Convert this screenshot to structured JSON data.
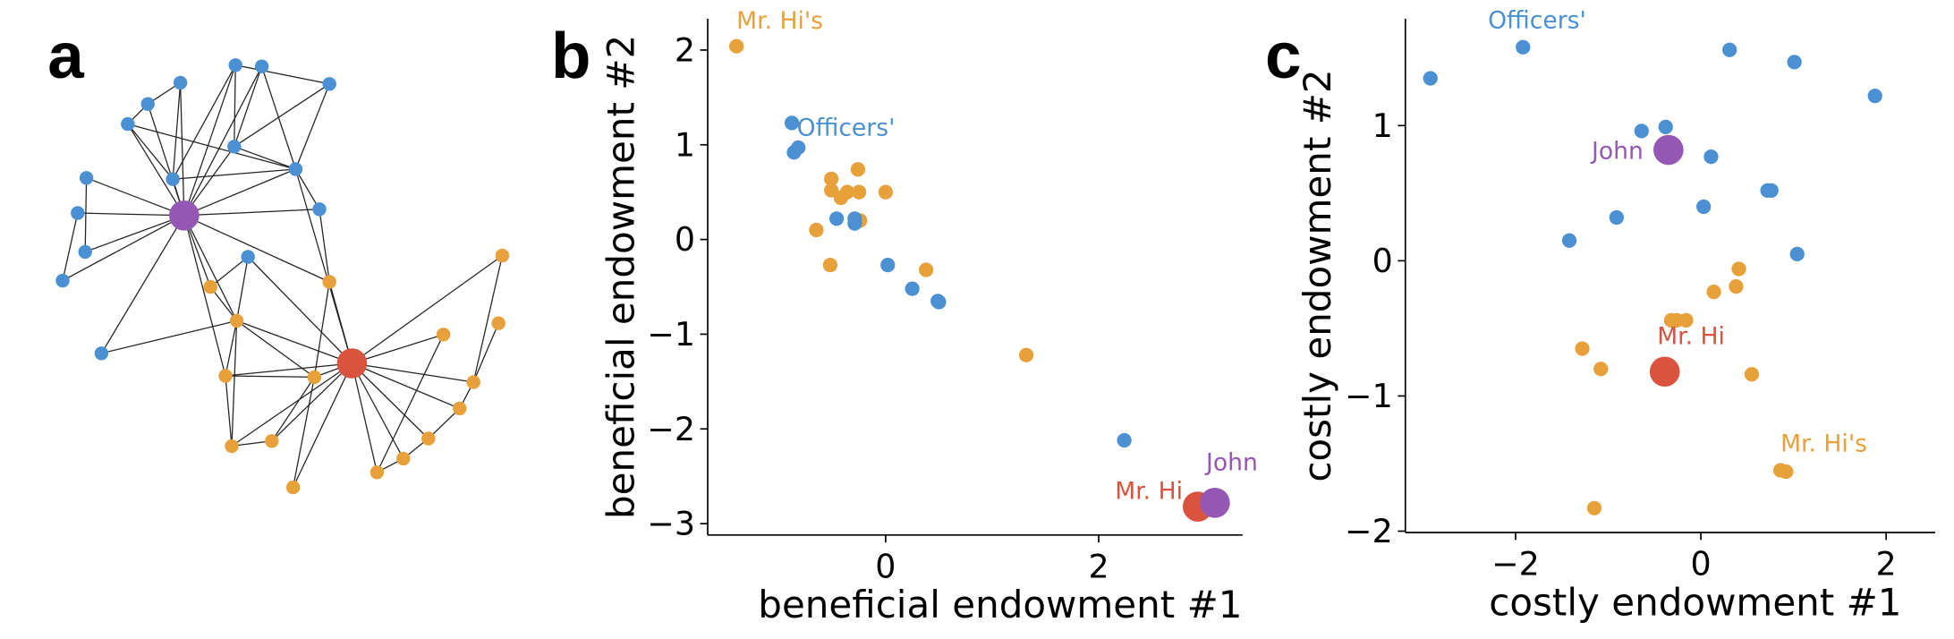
{
  "network": {
    "panel": "a"
  },
  "chart_data": [
    {
      "type": "scatter",
      "panel": "b",
      "xlabel": "beneficial endowment #1",
      "ylabel": "beneficial endowment #2",
      "xlim": [
        -1.67,
        3.35
      ],
      "ylim": [
        -3.12,
        2.33
      ],
      "xticks": [
        0,
        2
      ],
      "yticks": [
        {
          "value": -3,
          "label": "−3"
        },
        {
          "value": -2,
          "label": "−2"
        },
        {
          "value": -1,
          "label": "−1"
        },
        0,
        1,
        2
      ],
      "series": [
        {
          "name": "Mr. Hi's",
          "color": "#e8a03a",
          "x": [
            -1.4,
            -0.51,
            -0.26,
            -0.51,
            -0.36,
            -0.42,
            -0.25,
            0.0,
            -0.65,
            -0.24,
            -0.52,
            0.38,
            1.32
          ],
          "values": [
            2.04,
            0.64,
            0.74,
            0.52,
            0.5,
            0.44,
            0.5,
            0.5,
            0.1,
            0.2,
            -0.27,
            -0.32,
            -1.22
          ]
        },
        {
          "name": "Officers'",
          "color": "#4a90d3",
          "x": [
            -0.88,
            -0.82,
            -0.86,
            -0.46,
            -0.29,
            -0.29,
            0.02,
            0.25,
            0.49,
            0.5,
            2.24
          ],
          "values": [
            1.23,
            0.97,
            0.92,
            0.22,
            0.22,
            0.17,
            -0.27,
            -0.52,
            -0.65,
            -0.66,
            -2.12
          ]
        },
        {
          "name": "Mr. Hi",
          "color": "#d9533e",
          "x": [
            2.93
          ],
          "values": [
            -2.82
          ]
        },
        {
          "name": "John",
          "color": "#9457b3",
          "x": [
            3.09
          ],
          "values": [
            -2.78
          ]
        }
      ]
    },
    {
      "type": "scatter",
      "panel": "c",
      "xlabel": "costly endowment #1",
      "ylabel": "costly endowment #2",
      "xlim": [
        -3.19,
        2.53
      ],
      "ylim": [
        -2.01,
        1.79
      ],
      "xticks": [
        {
          "value": -2,
          "label": "−2"
        },
        0,
        2
      ],
      "yticks": [
        {
          "value": -2,
          "label": "−2"
        },
        {
          "value": -1,
          "label": "−1"
        },
        0,
        1
      ],
      "series": [
        {
          "name": "Officers'",
          "color": "#4a90d3",
          "x": [
            -1.92,
            -2.92,
            0.31,
            1.01,
            1.88,
            -0.64,
            -0.38,
            0.11,
            0.72,
            0.76,
            0.03,
            -0.91,
            -1.42,
            1.04
          ],
          "values": [
            1.58,
            1.35,
            1.56,
            1.47,
            1.22,
            0.96,
            0.99,
            0.77,
            0.52,
            0.52,
            0.4,
            0.32,
            0.15,
            0.05
          ]
        },
        {
          "name": "Mr. Hi's",
          "color": "#e8a03a",
          "x": [
            0.86,
            0.92,
            0.41,
            0.38,
            0.14,
            -0.32,
            -0.26,
            -0.16,
            -1.28,
            -1.08,
            0.55,
            -1.15
          ],
          "values": [
            -1.55,
            -1.56,
            -0.06,
            -0.19,
            -0.23,
            -0.44,
            -0.44,
            -0.44,
            -0.65,
            -0.8,
            -0.84,
            -1.83
          ]
        },
        {
          "name": "Mr. Hi",
          "color": "#d9533e",
          "x": [
            -0.39
          ],
          "values": [
            -0.82
          ]
        },
        {
          "name": "John",
          "color": "#9457b3",
          "x": [
            -0.35
          ],
          "values": [
            0.82
          ]
        }
      ]
    }
  ]
}
